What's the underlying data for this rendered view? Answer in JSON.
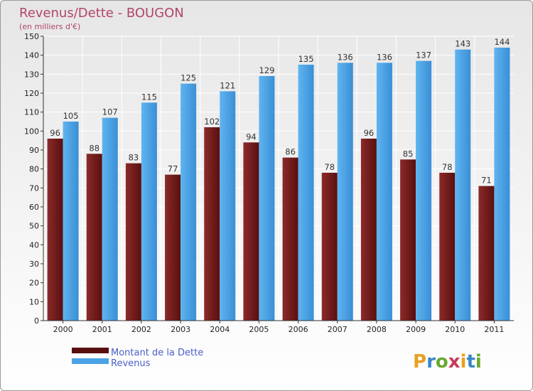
{
  "chart_data": {
    "type": "bar",
    "title": "Revenus/Dette - BOUGON",
    "subtitle": "(en milliers d'€)",
    "categories": [
      "2000",
      "2001",
      "2002",
      "2003",
      "2004",
      "2005",
      "2006",
      "2007",
      "2008",
      "2009",
      "2010",
      "2011"
    ],
    "series": [
      {
        "name": "Montant de la Dette",
        "color": "#7a1e1e",
        "values": [
          96,
          88,
          83,
          77,
          102,
          94,
          86,
          78,
          96,
          85,
          78,
          71
        ]
      },
      {
        "name": "Revenus",
        "color": "#4aa3e6",
        "values": [
          105,
          107,
          115,
          125,
          121,
          129,
          135,
          136,
          136,
          137,
          143,
          144
        ]
      }
    ],
    "ylim": [
      0,
      150
    ],
    "yticks": [
      0,
      10,
      20,
      30,
      40,
      50,
      60,
      70,
      80,
      90,
      100,
      110,
      120,
      130,
      140,
      150
    ],
    "grid": true,
    "legend_position": "bottom-left"
  },
  "logo": {
    "letters": [
      "P",
      "r",
      "o",
      "x",
      "i",
      "t",
      "i"
    ],
    "colors": [
      "#e8a020",
      "#3a86c8",
      "#6aa830",
      "#c83a5a",
      "#e8a020",
      "#3a86c8",
      "#6aa830"
    ]
  }
}
